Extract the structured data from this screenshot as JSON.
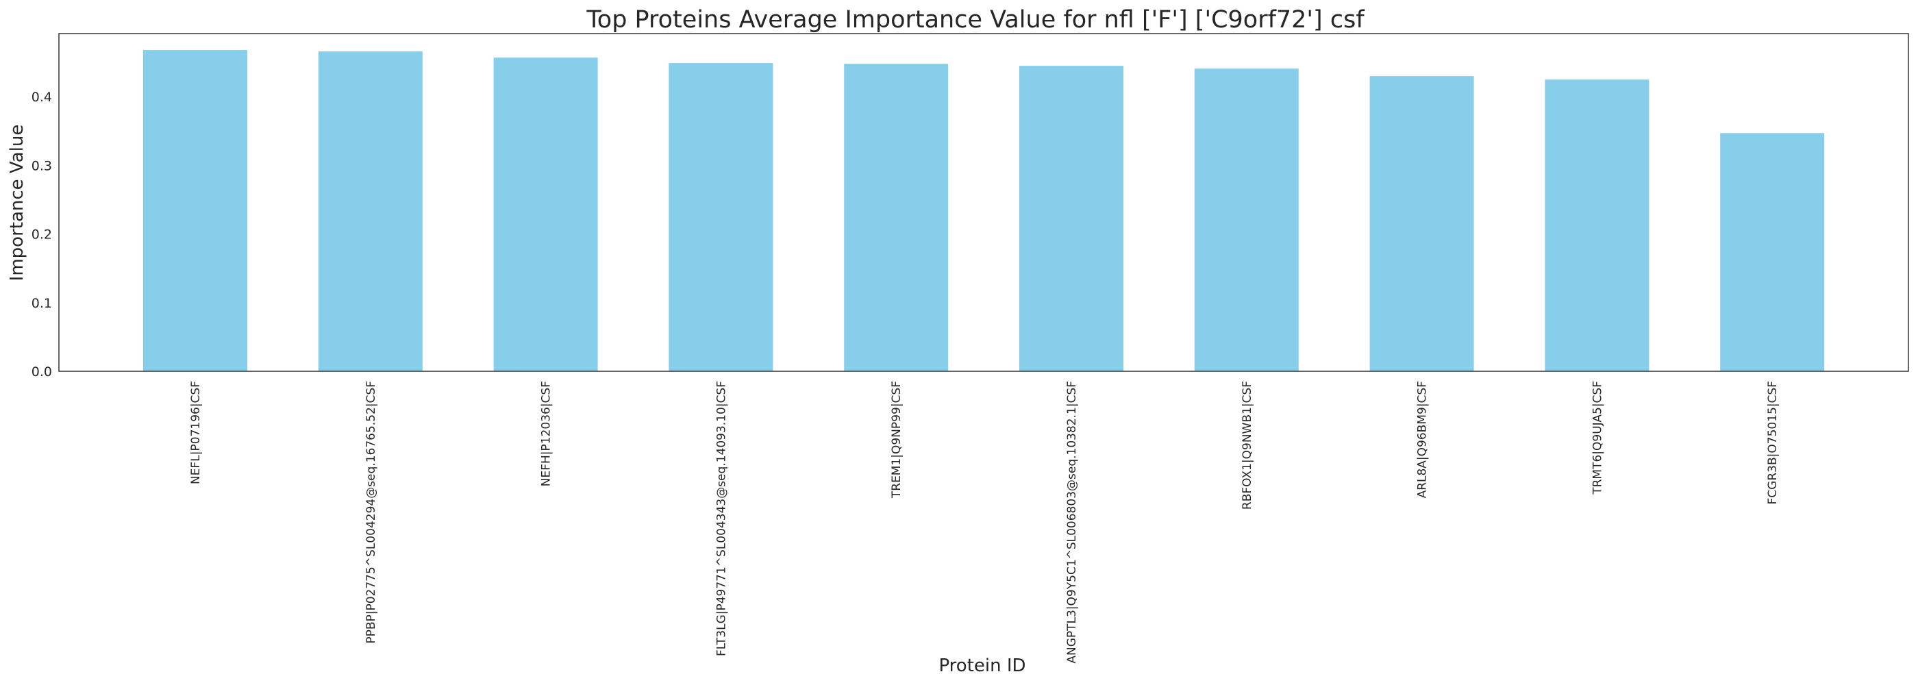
{
  "chart_data": {
    "type": "bar",
    "title": "Top Proteins Average Importance Value for nfl ['F'] ['C9orf72'] csf",
    "xlabel": "Protein ID",
    "ylabel": "Importance Value",
    "ylim": [
      0,
      0.492
    ],
    "yticks": [
      "0.0",
      "0.1",
      "0.2",
      "0.3",
      "0.4"
    ],
    "grid": false,
    "bar_color": "#87CEEB",
    "categories": [
      "NEFL|P07196|CSF",
      "PPBP|P02775^SL004294@seq.16765.52|CSF",
      "NEFH|P12036|CSF",
      "FLT3LG|P49771^SL004343@seq.14093.10|CSF",
      "TREM1|Q9NP99|CSF",
      "ANGPTL3|Q9Y5C1^SL006803@seq.10382.1|CSF",
      "RBFOX1|Q9NWB1|CSF",
      "ARL8A|Q96BM9|CSF",
      "TRMT6|Q9UJA5|CSF",
      "FCGR3B|O75015|CSF"
    ],
    "values": [
      0.468,
      0.466,
      0.457,
      0.449,
      0.448,
      0.445,
      0.441,
      0.43,
      0.425,
      0.347
    ]
  }
}
